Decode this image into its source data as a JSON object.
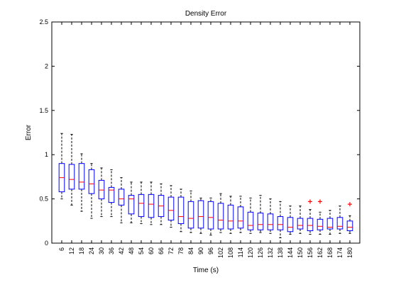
{
  "chart_data": {
    "type": "boxplot",
    "title": "Density Error",
    "xlabel": "Time (s)",
    "ylabel": "Error",
    "ylim": [
      0,
      2.5
    ],
    "yticks": [
      "0",
      "0.5",
      "1",
      "1.5",
      "2",
      "2.5"
    ],
    "categories": [
      "6",
      "12",
      "18",
      "24",
      "30",
      "36",
      "42",
      "48",
      "54",
      "60",
      "66",
      "72",
      "78",
      "84",
      "90",
      "96",
      "102",
      "108",
      "114",
      "120",
      "126",
      "132",
      "138",
      "144",
      "150",
      "156",
      "162",
      "168",
      "174",
      "180"
    ],
    "grid": false,
    "colors": {
      "box": "#0000ff",
      "median": "#ff0000",
      "whisker": "#000000",
      "outlier": "#ff0000"
    },
    "boxes": [
      {
        "whislo": 0.5,
        "q1": 0.58,
        "med": 0.74,
        "q3": 0.9,
        "whishi": 1.24
      },
      {
        "whislo": 0.43,
        "q1": 0.61,
        "med": 0.72,
        "q3": 0.89,
        "whishi": 1.23
      },
      {
        "whislo": 0.36,
        "q1": 0.61,
        "med": 0.69,
        "q3": 0.9,
        "whishi": 1.01
      },
      {
        "whislo": 0.28,
        "q1": 0.56,
        "med": 0.67,
        "q3": 0.83,
        "whishi": 0.9
      },
      {
        "whislo": 0.3,
        "q1": 0.5,
        "med": 0.6,
        "q3": 0.71,
        "whishi": 0.85
      },
      {
        "whislo": 0.3,
        "q1": 0.46,
        "med": 0.6,
        "q3": 0.63,
        "whishi": 0.83
      },
      {
        "whislo": 0.23,
        "q1": 0.43,
        "med": 0.5,
        "q3": 0.61,
        "whishi": 0.74
      },
      {
        "whislo": 0.23,
        "q1": 0.33,
        "med": 0.5,
        "q3": 0.54,
        "whishi": 0.69
      },
      {
        "whislo": 0.22,
        "q1": 0.3,
        "med": 0.45,
        "q3": 0.55,
        "whishi": 0.69
      },
      {
        "whislo": 0.21,
        "q1": 0.29,
        "med": 0.44,
        "q3": 0.55,
        "whishi": 0.69
      },
      {
        "whislo": 0.21,
        "q1": 0.3,
        "med": 0.42,
        "q3": 0.54,
        "whishi": 0.67
      },
      {
        "whislo": 0.18,
        "q1": 0.26,
        "med": 0.37,
        "q3": 0.52,
        "whishi": 0.65
      },
      {
        "whislo": 0.13,
        "q1": 0.22,
        "med": 0.3,
        "q3": 0.52,
        "whishi": 0.61
      },
      {
        "whislo": 0.12,
        "q1": 0.17,
        "med": 0.28,
        "q3": 0.47,
        "whishi": 0.59
      },
      {
        "whislo": 0.11,
        "q1": 0.17,
        "med": 0.3,
        "q3": 0.48,
        "whishi": 0.51
      },
      {
        "whislo": 0.09,
        "q1": 0.16,
        "med": 0.29,
        "q3": 0.47,
        "whishi": 0.51
      },
      {
        "whislo": 0.12,
        "q1": 0.16,
        "med": 0.26,
        "q3": 0.45,
        "whishi": 0.56
      },
      {
        "whislo": 0.11,
        "q1": 0.16,
        "med": 0.25,
        "q3": 0.43,
        "whishi": 0.53
      },
      {
        "whislo": 0.12,
        "q1": 0.17,
        "med": 0.25,
        "q3": 0.41,
        "whishi": 0.53
      },
      {
        "whislo": 0.11,
        "q1": 0.15,
        "med": 0.2,
        "q3": 0.35,
        "whishi": 0.51
      },
      {
        "whislo": 0.12,
        "q1": 0.15,
        "med": 0.21,
        "q3": 0.34,
        "whishi": 0.54
      },
      {
        "whislo": 0.11,
        "q1": 0.15,
        "med": 0.21,
        "q3": 0.33,
        "whishi": 0.5
      },
      {
        "whislo": 0.06,
        "q1": 0.15,
        "med": 0.21,
        "q3": 0.3,
        "whishi": 0.47
      },
      {
        "whislo": 0.1,
        "q1": 0.13,
        "med": 0.18,
        "q3": 0.29,
        "whishi": 0.42
      },
      {
        "whislo": 0.11,
        "q1": 0.16,
        "med": 0.2,
        "q3": 0.28,
        "whishi": 0.42
      },
      {
        "whislo": 0.1,
        "q1": 0.14,
        "med": 0.2,
        "q3": 0.28,
        "whishi": 0.38,
        "fliers": [
          0.47
        ]
      },
      {
        "whislo": 0.1,
        "q1": 0.15,
        "med": 0.19,
        "q3": 0.27,
        "whishi": 0.35,
        "fliers": [
          0.47
        ]
      },
      {
        "whislo": 0.1,
        "q1": 0.16,
        "med": 0.18,
        "q3": 0.28,
        "whishi": 0.37
      },
      {
        "whislo": 0.11,
        "q1": 0.16,
        "med": 0.19,
        "q3": 0.29,
        "whishi": 0.42
      },
      {
        "whislo": 0.11,
        "q1": 0.14,
        "med": 0.18,
        "q3": 0.25,
        "whishi": 0.31,
        "fliers": [
          0.44
        ]
      }
    ]
  }
}
